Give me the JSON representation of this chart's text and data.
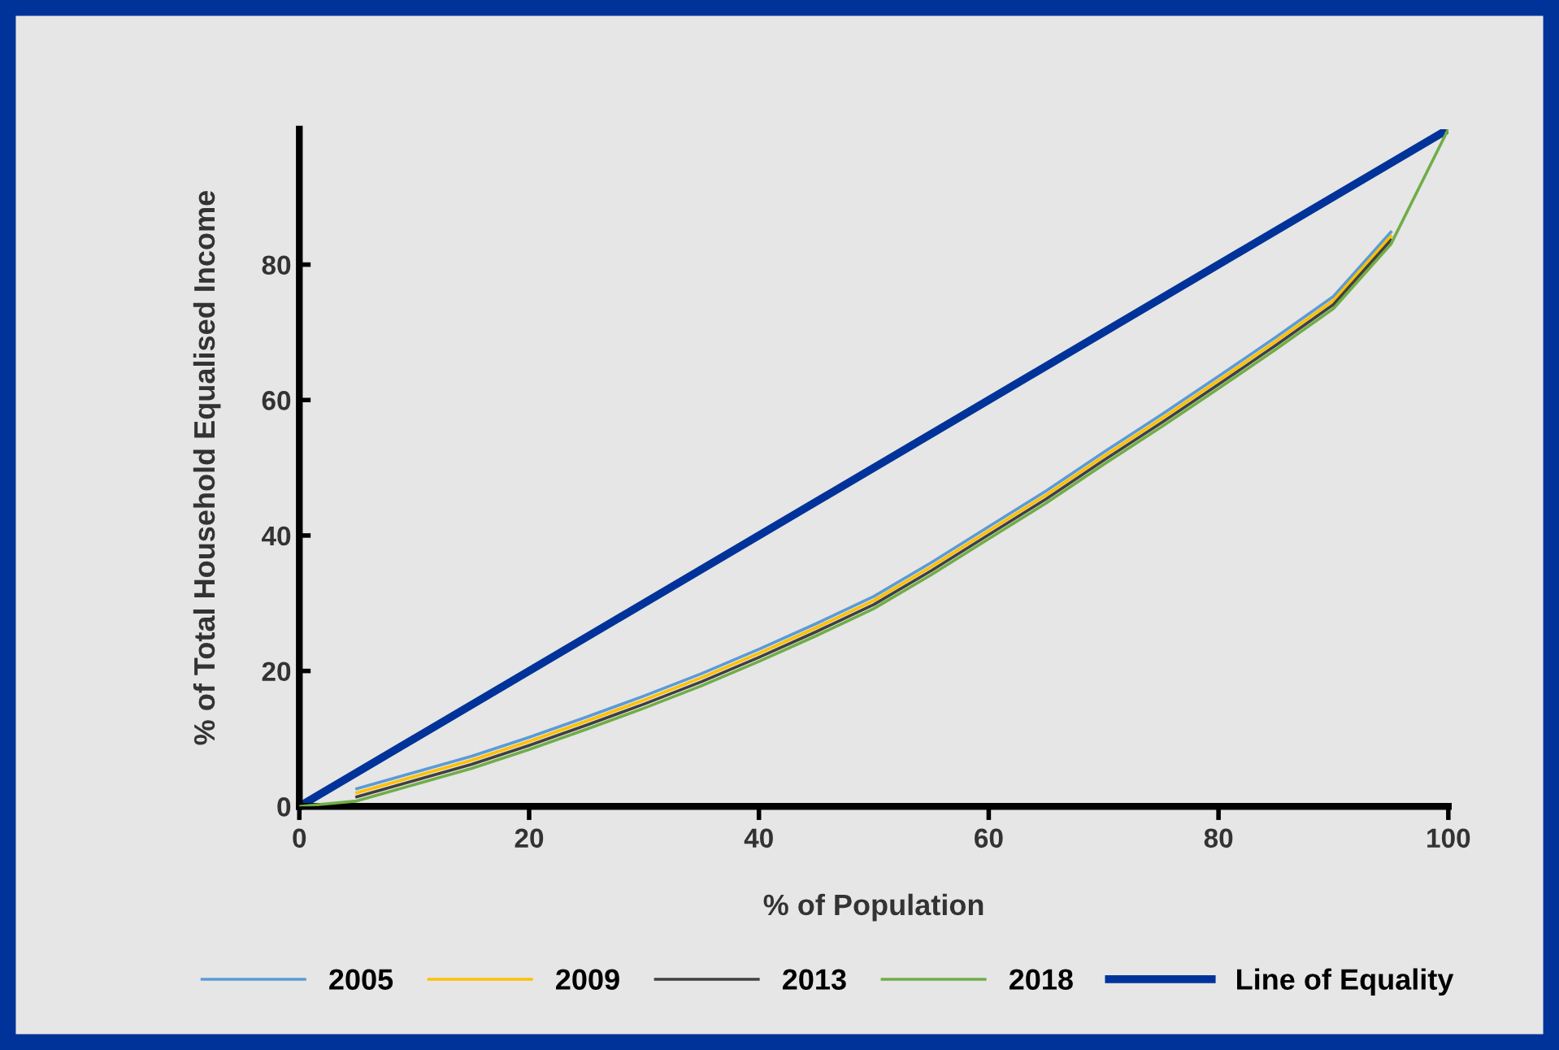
{
  "chart_data": {
    "type": "line",
    "xlabel": "% of Population",
    "ylabel": "% of Total Household Equalised Income",
    "xlim": [
      0,
      100
    ],
    "ylim": [
      0,
      100
    ],
    "xticks": [
      0,
      20,
      40,
      60,
      80,
      100
    ],
    "yticks": [
      0,
      20,
      40,
      60,
      80
    ],
    "grid": false,
    "legend": "bottom",
    "marker": "none",
    "line_style": "solid",
    "series": [
      {
        "name": "2005",
        "color": "#5b9bd5",
        "x": [
          5,
          10,
          15,
          20,
          25,
          30,
          35,
          40,
          45,
          50,
          55,
          60,
          65,
          70,
          75,
          80,
          85,
          90,
          95
        ],
        "values": [
          2.6,
          5,
          7.4,
          10.2,
          13.2,
          16.3,
          19.6,
          23.2,
          27,
          31,
          36,
          41.3,
          46.6,
          52.3,
          57.8,
          63.5,
          69.3,
          75.3,
          84.8
        ]
      },
      {
        "name": "2009",
        "color": "#ffc000",
        "x": [
          5,
          10,
          15,
          20,
          25,
          30,
          35,
          40,
          45,
          50,
          55,
          60,
          65,
          70,
          75,
          80,
          85,
          90,
          95
        ],
        "values": [
          2,
          4.4,
          6.8,
          9.6,
          12.6,
          15.7,
          19,
          22.6,
          26.4,
          30.4,
          35.4,
          40.7,
          46,
          51.7,
          57.2,
          62.9,
          68.7,
          74.7,
          84.2
        ]
      },
      {
        "name": "2013",
        "color": "#404040",
        "x": [
          5,
          10,
          15,
          20,
          25,
          30,
          35,
          40,
          45,
          50,
          55,
          60,
          65,
          70,
          75,
          80,
          85,
          90,
          95
        ],
        "values": [
          1.4,
          3.8,
          6.2,
          9,
          12,
          15.1,
          18.4,
          22,
          25.8,
          29.8,
          34.8,
          40.1,
          45.4,
          51.1,
          56.6,
          62.3,
          68.1,
          74.1,
          83.6
        ]
      },
      {
        "name": "2018",
        "color": "#70ad47",
        "x": [
          0,
          5,
          10,
          15,
          20,
          25,
          30,
          35,
          40,
          45,
          50,
          55,
          60,
          65,
          70,
          75,
          80,
          85,
          90,
          95,
          100
        ],
        "values": [
          0,
          0.8,
          3.2,
          5.6,
          8.4,
          11.4,
          14.5,
          17.8,
          21.4,
          25.2,
          29.2,
          34.2,
          39.5,
          44.8,
          50.5,
          56,
          61.7,
          67.5,
          73.5,
          83,
          100
        ]
      },
      {
        "name": "Line of Equality",
        "color": "#003399",
        "x": [
          0,
          100
        ],
        "values": [
          0,
          100
        ]
      }
    ]
  }
}
